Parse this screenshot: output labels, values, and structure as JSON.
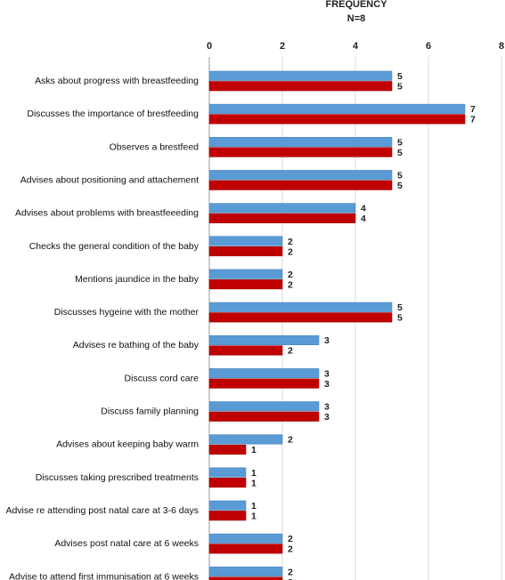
{
  "chart_data": {
    "type": "bar",
    "orientation": "horizontal",
    "title": "FREQUENCY",
    "subtitle": "N=8",
    "xlim": [
      0,
      8
    ],
    "xticks": [
      0,
      2,
      4,
      6,
      8
    ],
    "grid": true,
    "categories": [
      "Asks about progress with breastfeeding",
      "Discusses the importance of brestfeeding",
      "Observes a brestfeed",
      "Advises about positioning and attachement",
      "Advises about problems with breastfeeeding",
      "Checks the general condition of the baby",
      "Mentions jaundice in the baby",
      "Discusses hygeine with the mother",
      "Advises re bathing of the baby",
      "Discuss cord care",
      "Discuss family planning",
      "Advises about keeping baby warm",
      "Discusses taking prescribed treatments",
      "Advise re attending post natal care at 3-6 days",
      "Advises post natal care at 6 weeks",
      "Advise to attend first immunisation at 6 weeks"
    ],
    "series": [
      {
        "color": "#5B9BD5",
        "values": [
          5,
          7,
          5,
          5,
          4,
          2,
          2,
          5,
          3,
          3,
          3,
          2,
          1,
          1,
          2,
          2
        ]
      },
      {
        "color": "#C00000",
        "values": [
          5,
          7,
          5,
          5,
          4,
          2,
          2,
          5,
          2,
          3,
          3,
          1,
          1,
          1,
          2,
          2
        ]
      }
    ]
  }
}
